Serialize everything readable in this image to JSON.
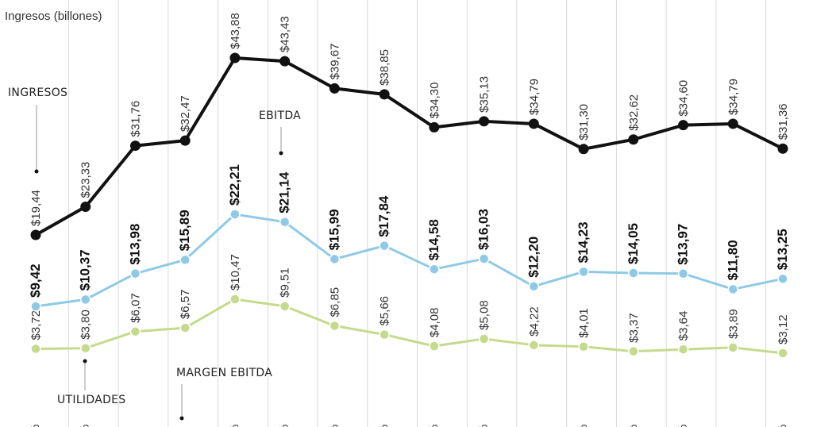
{
  "chart_data": {
    "type": "line",
    "ylabel": "Ingresos (billones)",
    "points_count": 16,
    "series": [
      {
        "name": "INGRESOS",
        "color": "#111111",
        "bold_labels": false,
        "values": [
          19.44,
          23.33,
          31.76,
          32.47,
          43.88,
          43.43,
          39.67,
          38.85,
          34.3,
          35.13,
          34.79,
          31.3,
          32.62,
          34.6,
          34.79,
          31.36
        ],
        "labels": [
          "$19,44",
          "$23,33",
          "$31,76",
          "$32,47",
          "$43,88",
          "$43,43",
          "$39,67",
          "$38,85",
          "$34,30",
          "$35,13",
          "$34,79",
          "$31,30",
          "$32,62",
          "$34,60",
          "$34,79",
          "$31,36"
        ]
      },
      {
        "name": "EBITDA",
        "color": "#8ecae6",
        "bold_labels": true,
        "values": [
          9.42,
          10.37,
          13.98,
          15.89,
          22.21,
          21.14,
          15.99,
          17.84,
          14.58,
          16.03,
          12.2,
          14.23,
          14.05,
          13.97,
          11.8,
          13.25
        ],
        "labels": [
          "$9,42",
          "$10,37",
          "$13,98",
          "$15,89",
          "$22,21",
          "$21,14",
          "$15,99",
          "$17,84",
          "$14,58",
          "$16,03",
          "$12,20",
          "$14,23",
          "$14,05",
          "$13,97",
          "$11,80",
          "$13,25"
        ]
      },
      {
        "name": "UTILIDADES",
        "color": "#c5da8c",
        "bold_labels": false,
        "values": [
          3.72,
          3.8,
          6.07,
          6.57,
          10.47,
          9.51,
          6.85,
          5.66,
          4.08,
          5.08,
          4.22,
          4.01,
          3.37,
          3.64,
          3.89,
          3.12
        ],
        "labels": [
          "$3,72",
          "$3,80",
          "$6,07",
          "$6,57",
          "$10,47",
          "$9,51",
          "$6,85",
          "$5,66",
          "$4,08",
          "$5,08",
          "$4,22",
          "$4,01",
          "$3,37",
          "$3,64",
          "$3,89",
          "$3,12"
        ]
      }
    ],
    "annotations": {
      "ingresos": "INGRESOS",
      "ebitda": "EBITDA",
      "utilidades": "UTILIDADES",
      "margen_ebitda": "MARGEN EBITDA"
    },
    "percent_symbol": "%",
    "grid": "vertical",
    "gridline_color": "#d9d9d9"
  }
}
